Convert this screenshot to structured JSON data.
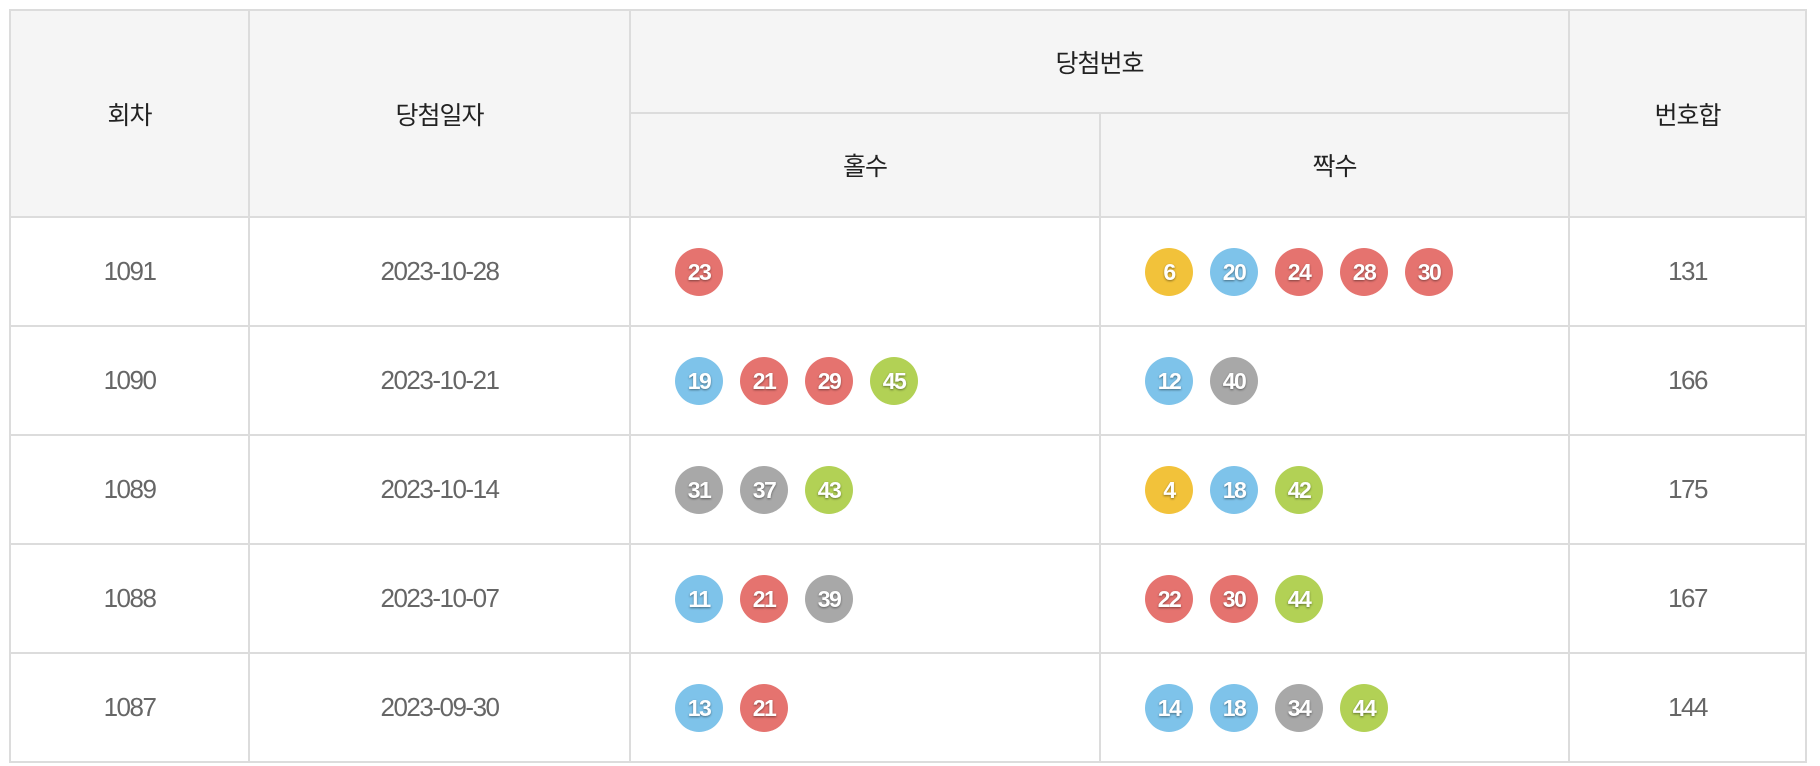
{
  "header": {
    "round": "회차",
    "date": "당첨일자",
    "numbers": "당첨번호",
    "odd": "홀수",
    "even": "짝수",
    "sum": "번호합"
  },
  "ball_colors": {
    "1-10": "#f2c23a",
    "11-20": "#7ec3ea",
    "21-30": "#e5736f",
    "31-40": "#a8a8a8",
    "41-45": "#b2d155"
  },
  "rows": [
    {
      "round": "1091",
      "date": "2023-10-28",
      "odd": [
        23
      ],
      "even": [
        6,
        20,
        24,
        28,
        30
      ],
      "sum": "131"
    },
    {
      "round": "1090",
      "date": "2023-10-21",
      "odd": [
        19,
        21,
        29,
        45
      ],
      "even": [
        12,
        40
      ],
      "sum": "166"
    },
    {
      "round": "1089",
      "date": "2023-10-14",
      "odd": [
        31,
        37,
        43
      ],
      "even": [
        4,
        18,
        42
      ],
      "sum": "175"
    },
    {
      "round": "1088",
      "date": "2023-10-07",
      "odd": [
        11,
        21,
        39
      ],
      "even": [
        22,
        30,
        44
      ],
      "sum": "167"
    },
    {
      "round": "1087",
      "date": "2023-09-30",
      "odd": [
        13,
        21
      ],
      "even": [
        14,
        18,
        34,
        44
      ],
      "sum": "144"
    }
  ]
}
